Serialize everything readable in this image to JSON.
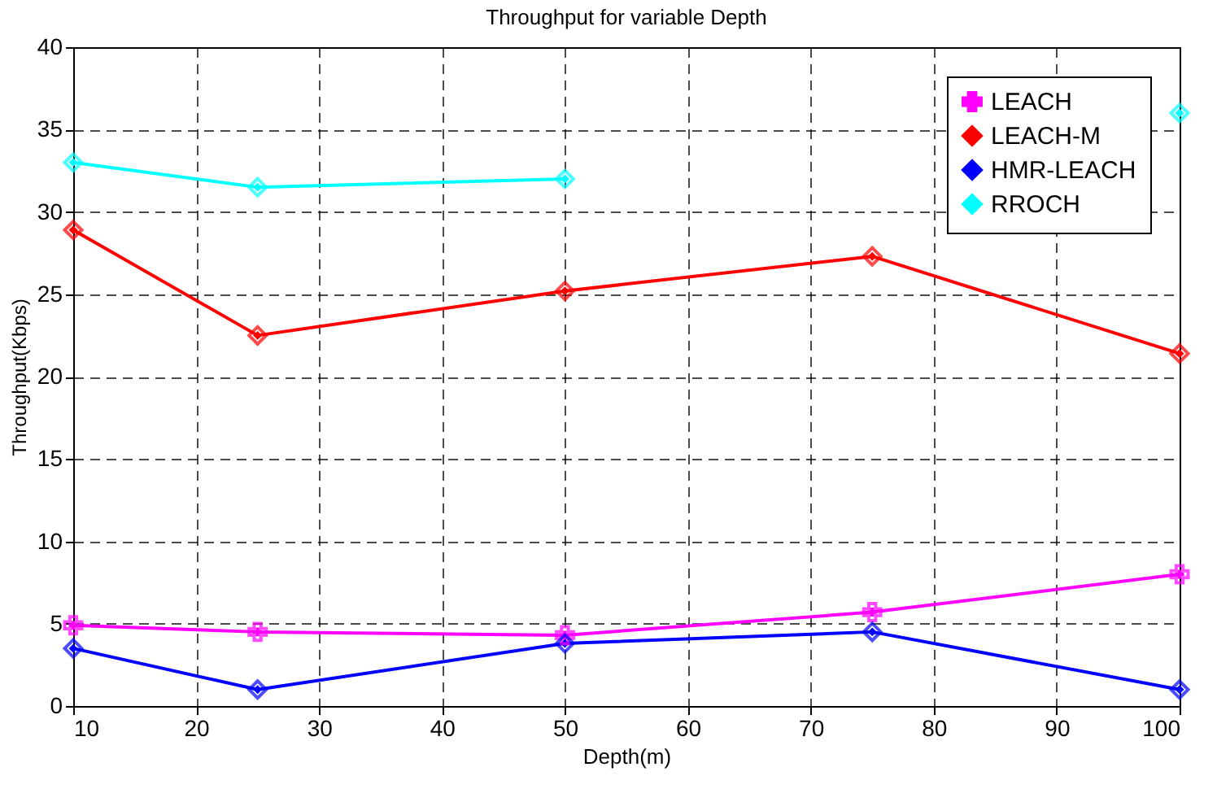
{
  "chart_data": {
    "type": "line",
    "title": "Throughput for variable Depth",
    "xlabel": "Depth(m)",
    "ylabel": "Throughput(Kbps)",
    "x": [
      10,
      25,
      50,
      75,
      100
    ],
    "series": [
      {
        "name": "LEACH",
        "color": "#ff00ff",
        "marker": "cross",
        "values": [
          4.9,
          4.5,
          4.3,
          5.7,
          8.0
        ]
      },
      {
        "name": "LEACH-M",
        "color": "#ff0000",
        "marker": "diamond",
        "values": [
          28.9,
          22.5,
          25.2,
          27.3,
          21.4
        ]
      },
      {
        "name": "HMR-LEACH",
        "color": "#0000ff",
        "marker": "diamond",
        "values": [
          3.5,
          1.0,
          3.8,
          4.5,
          1.0
        ]
      },
      {
        "name": "RROCH",
        "color": "#00ffff",
        "marker": "diamond",
        "values": [
          33.0,
          31.5,
          32.0,
          null,
          36.0
        ]
      }
    ],
    "xlim": [
      10,
      100
    ],
    "xticks": [
      10,
      20,
      30,
      40,
      50,
      60,
      70,
      80,
      90,
      100
    ],
    "ylim": [
      0,
      40
    ],
    "yticks": [
      0,
      5,
      10,
      15,
      20,
      25,
      30,
      35,
      40
    ],
    "grid": true,
    "legend": "top right",
    "line_style": "solid"
  }
}
